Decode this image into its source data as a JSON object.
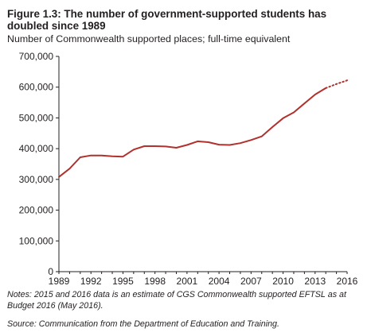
{
  "figure": {
    "title": "Figure 1.3: The number of government-supported students has doubled since 1989",
    "subtitle": "Number of Commonwealth supported places; full-time equivalent",
    "notes_prefix": "Notes: 2015 and 2016 data is an estimate of CGS Commonwealth supported ",
    "notes_abbr": "EFTSL",
    "notes_suffix": " as at Budget 2016 (May 2016).",
    "source": "Source: Communication from the Department of Education and Training."
  },
  "chart_data": {
    "type": "line",
    "title": "Figure 1.3: The number of government-supported students has doubled since 1989",
    "subtitle": "Number of Commonwealth supported places; full-time equivalent",
    "xlabel": "",
    "ylabel": "",
    "xlim": [
      1989,
      2016
    ],
    "ylim": [
      0,
      700000
    ],
    "x_ticks": [
      1989,
      1992,
      1995,
      1998,
      2001,
      2004,
      2007,
      2010,
      2013,
      2016
    ],
    "x_tick_labels": [
      "1989",
      "1992",
      "1995",
      "1998",
      "2001",
      "2004",
      "2007",
      "2010",
      "2013",
      "2016"
    ],
    "y_ticks": [
      0,
      100000,
      200000,
      300000,
      400000,
      500000,
      600000,
      700000
    ],
    "y_tick_labels": [
      "0",
      "100,000",
      "200,000",
      "300,000",
      "400,000",
      "500,000",
      "600,000",
      "700,000"
    ],
    "grid": false,
    "legend": "none",
    "series": [
      {
        "style": "solid",
        "color": "#b0312e",
        "x": [
          1989,
          1990,
          1991,
          1992,
          1993,
          1994,
          1995,
          1996,
          1997,
          1998,
          1999,
          2000,
          2001,
          2002,
          2003,
          2004,
          2005,
          2006,
          2007,
          2008,
          2009,
          2010,
          2011,
          2012,
          2013,
          2014
        ],
        "values": [
          308000,
          335000,
          372000,
          378000,
          378000,
          375000,
          374000,
          397000,
          408000,
          408000,
          407000,
          403000,
          412000,
          424000,
          421000,
          413000,
          412000,
          418000,
          428000,
          440000,
          470000,
          499000,
          518000,
          547000,
          576000,
          597000
        ]
      },
      {
        "style": "dotted",
        "color": "#b0312e",
        "note": "estimate",
        "x": [
          2014,
          2015,
          2016
        ],
        "values": [
          597000,
          610000,
          622000
        ]
      }
    ]
  }
}
